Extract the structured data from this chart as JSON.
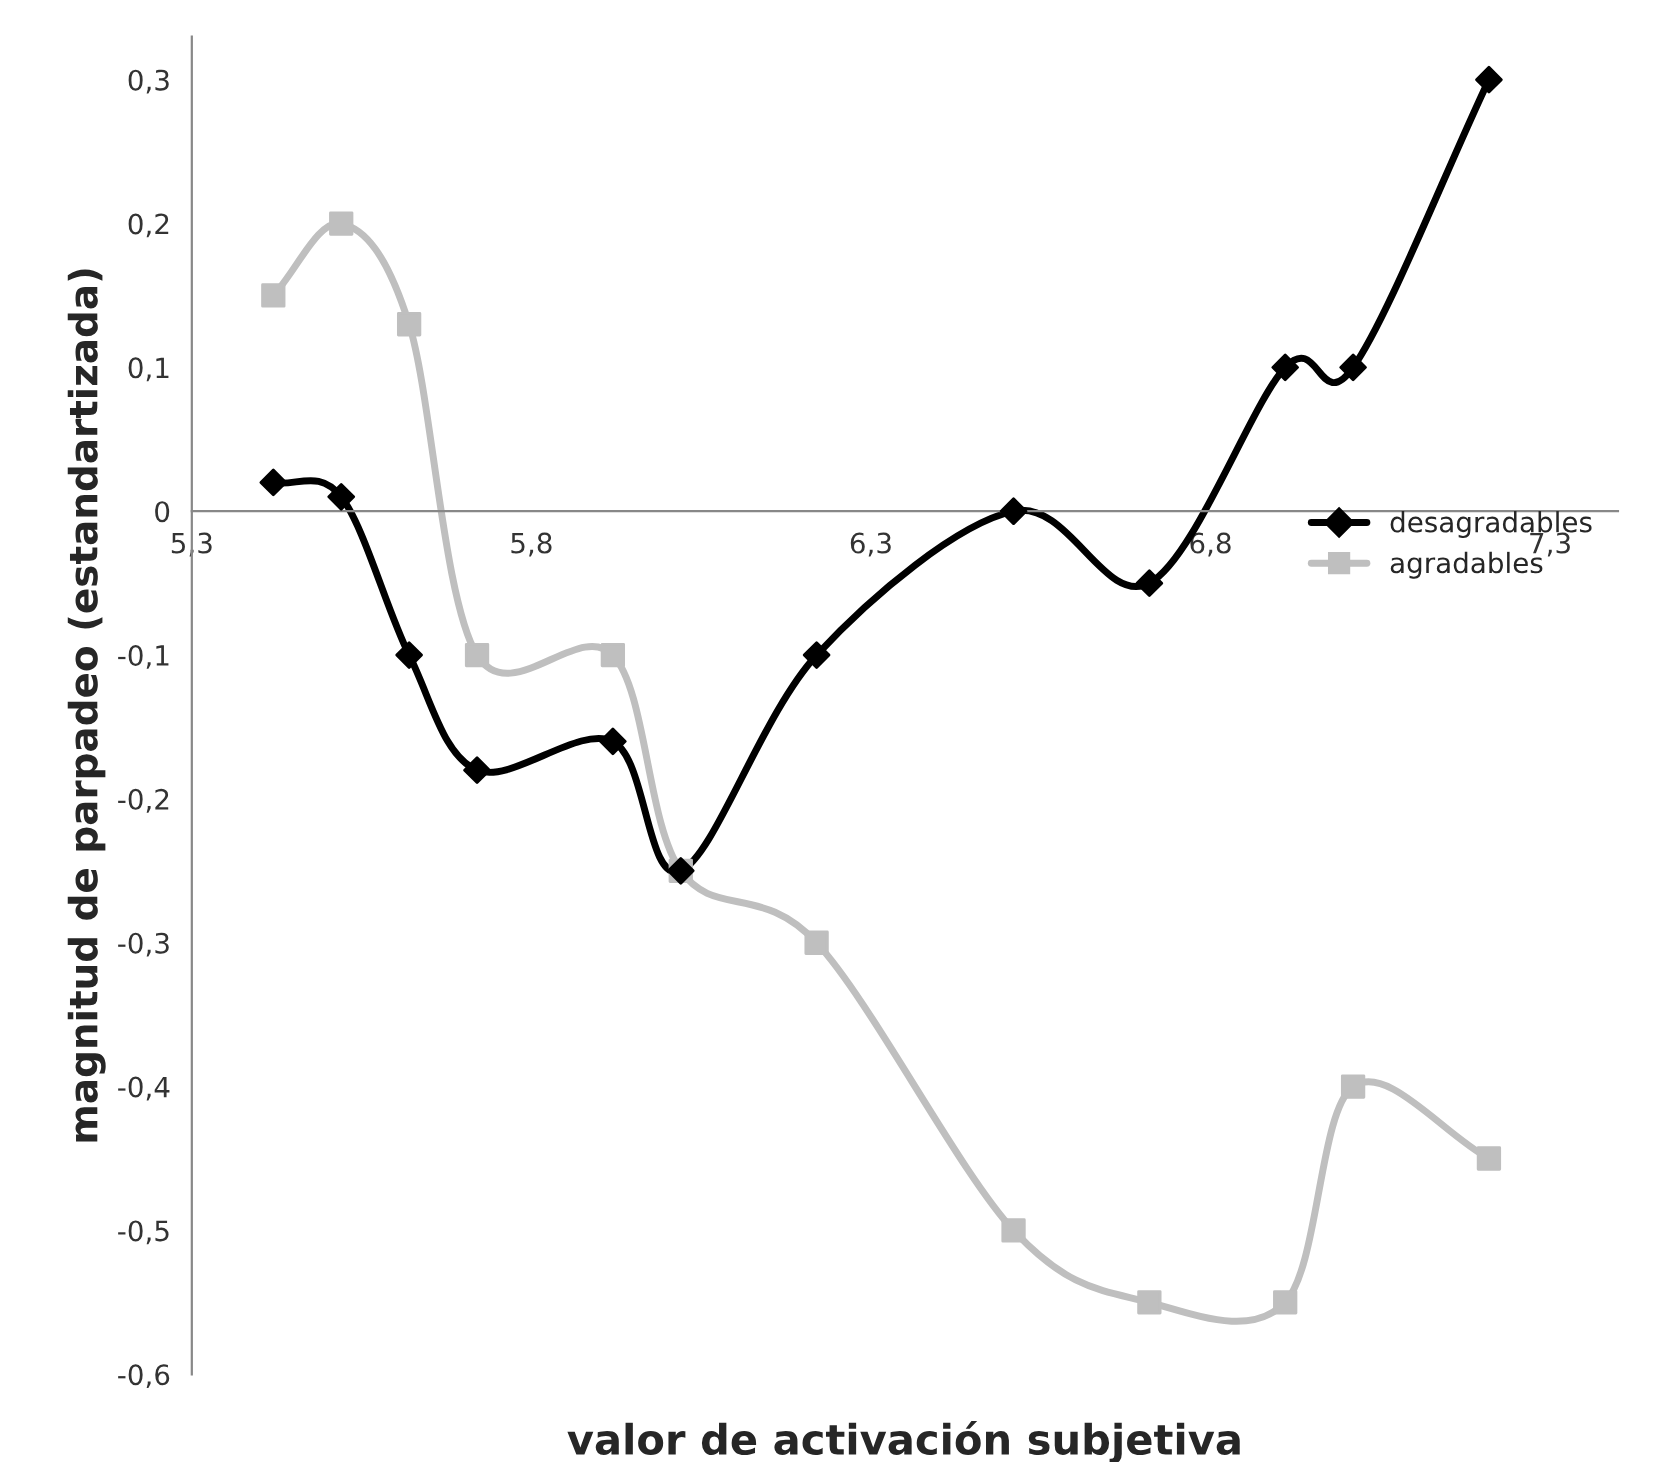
{
  "chart_data": {
    "type": "line",
    "xlabel": "valor de activación subjetiva",
    "ylabel": "magnitud de parpadeo (estandartizada)",
    "series": [
      {
        "name": "desagradables",
        "color": "#000000",
        "marker": "diamond",
        "x": [
          5.42,
          5.52,
          5.62,
          5.72,
          5.92,
          6.02,
          6.22,
          6.51,
          6.71,
          6.91,
          7.01,
          7.21
        ],
        "values": [
          0.02,
          0.01,
          -0.1,
          -0.18,
          -0.16,
          -0.25,
          -0.1,
          0,
          -0.05,
          0.1,
          0.1,
          0.3
        ]
      },
      {
        "name": "agradables",
        "color": "#bfbfbf",
        "marker": "square",
        "x": [
          5.42,
          5.52,
          5.62,
          5.72,
          5.92,
          6.02,
          6.22,
          6.51,
          6.71,
          6.91,
          7.01,
          7.21
        ],
        "values": [
          0.15,
          0.2,
          0.13,
          -0.1,
          -0.1,
          -0.25,
          -0.3,
          -0.5,
          -0.55,
          -0.55,
          -0.4,
          -0.45
        ]
      }
    ],
    "xlim": [
      5.3,
      7.4
    ],
    "ylim": [
      -0.6,
      0.33
    ],
    "xticks": [
      {
        "value": 5.3,
        "label": "5,3"
      },
      {
        "value": 5.8,
        "label": "5,8"
      },
      {
        "value": 6.3,
        "label": "6,3"
      },
      {
        "value": 6.8,
        "label": "6,8"
      },
      {
        "value": 7.3,
        "label": "7,3"
      }
    ],
    "yticks": [
      {
        "value": -0.6,
        "label": "-0,6"
      },
      {
        "value": -0.5,
        "label": "-0,5"
      },
      {
        "value": -0.4,
        "label": "-0,4"
      },
      {
        "value": -0.3,
        "label": "-0,3"
      },
      {
        "value": -0.2,
        "label": "-0,2"
      },
      {
        "value": -0.1,
        "label": "-0,1"
      },
      {
        "value": 0,
        "label": "0"
      },
      {
        "value": 0.1,
        "label": "0,1"
      },
      {
        "value": 0.2,
        "label": "0,2"
      },
      {
        "value": 0.3,
        "label": "0,3"
      }
    ],
    "legend": "right"
  }
}
